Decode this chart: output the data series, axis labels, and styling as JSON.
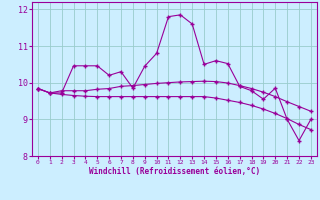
{
  "xlabel": "Windchill (Refroidissement éolien,°C)",
  "background_color": "#cceeff",
  "grid_color": "#99cccc",
  "line_color": "#990099",
  "x": [
    0,
    1,
    2,
    3,
    4,
    5,
    6,
    7,
    8,
    9,
    10,
    11,
    12,
    13,
    14,
    15,
    16,
    17,
    18,
    19,
    20,
    21,
    22,
    23
  ],
  "line1": [
    9.84,
    9.72,
    9.72,
    10.46,
    10.46,
    10.46,
    10.2,
    10.3,
    9.85,
    10.45,
    10.8,
    11.8,
    11.85,
    11.6,
    10.5,
    10.6,
    10.52,
    9.9,
    9.78,
    9.55,
    9.85,
    9.0,
    8.42,
    9.0
  ],
  "line2": [
    9.84,
    9.72,
    9.78,
    9.78,
    9.78,
    9.82,
    9.84,
    9.9,
    9.92,
    9.95,
    9.98,
    10.0,
    10.02,
    10.03,
    10.04,
    10.03,
    9.99,
    9.92,
    9.84,
    9.74,
    9.62,
    9.48,
    9.35,
    9.22
  ],
  "line3": [
    9.84,
    9.72,
    9.68,
    9.65,
    9.63,
    9.62,
    9.62,
    9.62,
    9.62,
    9.62,
    9.62,
    9.62,
    9.62,
    9.62,
    9.62,
    9.58,
    9.52,
    9.46,
    9.38,
    9.28,
    9.16,
    9.02,
    8.86,
    8.72
  ],
  "ylim": [
    8.0,
    12.2
  ],
  "yticks": [
    8,
    9,
    10,
    11,
    12
  ],
  "xticks": [
    0,
    1,
    2,
    3,
    4,
    5,
    6,
    7,
    8,
    9,
    10,
    11,
    12,
    13,
    14,
    15,
    16,
    17,
    18,
    19,
    20,
    21,
    22,
    23
  ]
}
